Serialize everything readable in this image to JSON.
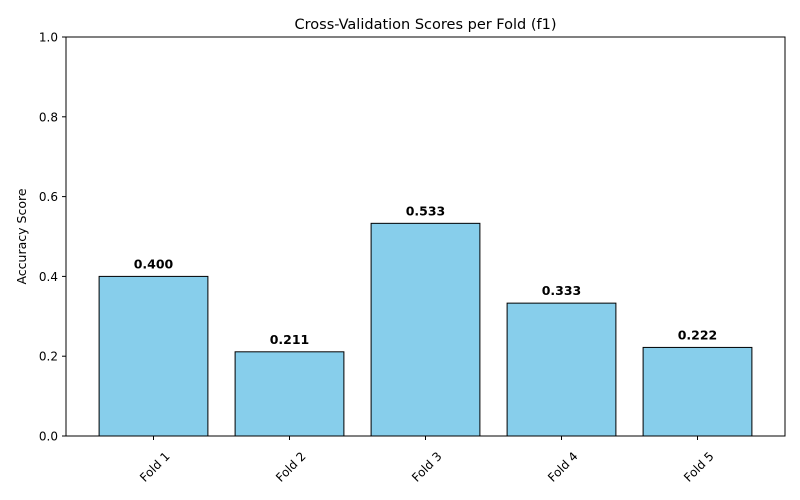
{
  "chart_data": {
    "type": "bar",
    "title": "Cross-Validation Scores per Fold (f1)",
    "xlabel": "",
    "ylabel": "Accuracy Score",
    "categories": [
      "Fold 1",
      "Fold 2",
      "Fold 3",
      "Fold 4",
      "Fold 5"
    ],
    "values": [
      0.4,
      0.211,
      0.533,
      0.333,
      0.222
    ],
    "value_labels": [
      "0.400",
      "0.211",
      "0.533",
      "0.333",
      "0.222"
    ],
    "ylim": [
      0,
      1.0
    ],
    "yticks": [
      0.0,
      0.2,
      0.4,
      0.6,
      0.8,
      1.0
    ],
    "ytick_labels": [
      "0.0",
      "0.2",
      "0.4",
      "0.6",
      "0.8",
      "1.0"
    ],
    "bar_color": "#87ceeb",
    "edge_color": "#000000",
    "grid": false,
    "legend": "none"
  }
}
